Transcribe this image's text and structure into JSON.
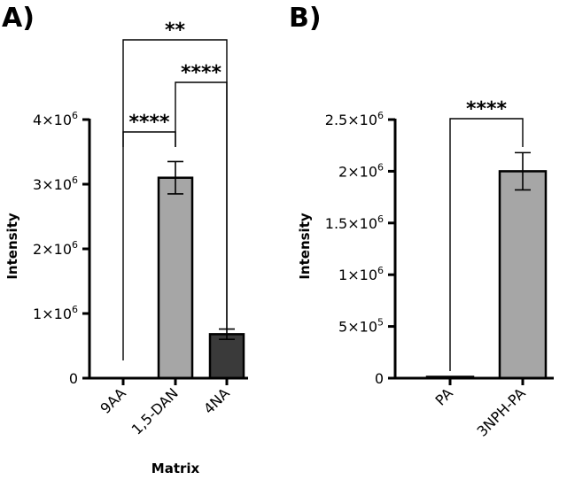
{
  "chart_data": [
    {
      "panel_label": "A)",
      "type": "bar",
      "categories": [
        "9AA",
        "1,5-DAN",
        "4NA"
      ],
      "values": [
        0,
        3100000,
        680000
      ],
      "errors": [
        0,
        250000,
        80000
      ],
      "bar_colors": [
        "#a6a6a6",
        "#a6a6a6",
        "#3a3a3a"
      ],
      "xlabel": "Matrix",
      "ylabel": "Intensity",
      "ylim": [
        0,
        4000000
      ],
      "yticks": [
        {
          "value": 0,
          "base": "0",
          "exp": ""
        },
        {
          "value": 1000000,
          "base": "1×10",
          "exp": "6"
        },
        {
          "value": 2000000,
          "base": "2×10",
          "exp": "6"
        },
        {
          "value": 3000000,
          "base": "3×10",
          "exp": "6"
        },
        {
          "value": 4000000,
          "base": "4×10",
          "exp": "6"
        }
      ],
      "grid": false,
      "significance": [
        {
          "from": 0,
          "to": 1,
          "label": "****"
        },
        {
          "from": 1,
          "to": 2,
          "label": "****"
        },
        {
          "from": 0,
          "to": 2,
          "label": "**"
        }
      ]
    },
    {
      "panel_label": "B)",
      "type": "bar",
      "categories": [
        "PA",
        "3NPH-PA"
      ],
      "values": [
        10000,
        2000000
      ],
      "errors": [
        0,
        180000
      ],
      "bar_colors": [
        "#a6a6a6",
        "#a6a6a6"
      ],
      "xlabel": "",
      "ylabel": "Intensity",
      "ylim": [
        0,
        2500000
      ],
      "yticks": [
        {
          "value": 0,
          "base": "0",
          "exp": ""
        },
        {
          "value": 500000,
          "base": "5×10",
          "exp": "5"
        },
        {
          "value": 1000000,
          "base": "1×10",
          "exp": "6"
        },
        {
          "value": 1500000,
          "base": "1.5×10",
          "exp": "6"
        },
        {
          "value": 2000000,
          "base": "2×10",
          "exp": "6"
        },
        {
          "value": 2500000,
          "base": "2.5×10",
          "exp": "6"
        }
      ],
      "grid": false,
      "significance": [
        {
          "from": 0,
          "to": 1,
          "label": "****"
        }
      ]
    }
  ]
}
